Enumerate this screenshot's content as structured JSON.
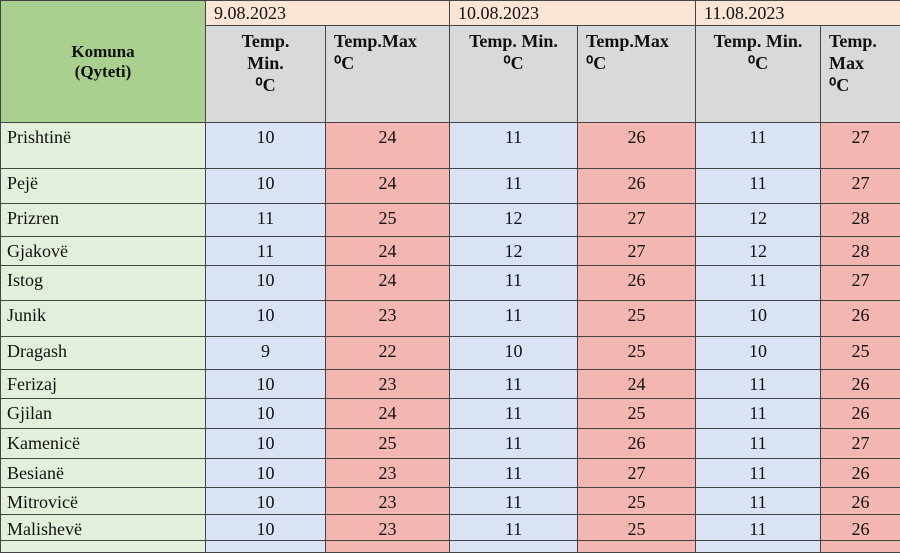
{
  "header": {
    "city_column": "Komuna\n(Qyteti)",
    "dates": [
      "9.08.2023",
      "10.08.2023",
      "11.08.2023"
    ],
    "subheaders": [
      "Temp.\nMin.\n⁰C",
      "Temp.Max\n⁰C",
      "Temp. Min.\n⁰C",
      "Temp.Max\n⁰C",
      "Temp. Min.\n⁰C",
      "Temp.\nMax\n⁰C"
    ]
  },
  "table": {
    "rows": [
      [
        "Prishtinë",
        10,
        24,
        11,
        26,
        11,
        27
      ],
      [
        "Pejë",
        10,
        24,
        11,
        26,
        11,
        27
      ],
      [
        "Prizren",
        11,
        25,
        12,
        27,
        12,
        28
      ],
      [
        "Gjakovë",
        11,
        24,
        12,
        27,
        12,
        28
      ],
      [
        "Istog",
        10,
        24,
        11,
        26,
        11,
        27
      ],
      [
        "Junik",
        10,
        23,
        11,
        25,
        10,
        26
      ],
      [
        "Dragash",
        9,
        22,
        10,
        25,
        10,
        25
      ],
      [
        "Ferizaj",
        10,
        23,
        11,
        24,
        11,
        26
      ],
      [
        "Gjilan",
        10,
        24,
        11,
        25,
        11,
        26
      ],
      [
        "Kamenicë",
        10,
        25,
        11,
        26,
        11,
        27
      ],
      [
        "Besianë",
        10,
        23,
        11,
        27,
        11,
        26
      ],
      [
        "Mitrovicë",
        10,
        23,
        11,
        25,
        11,
        26
      ],
      [
        "Malishevë",
        10,
        23,
        11,
        25,
        11,
        26
      ]
    ]
  }
}
